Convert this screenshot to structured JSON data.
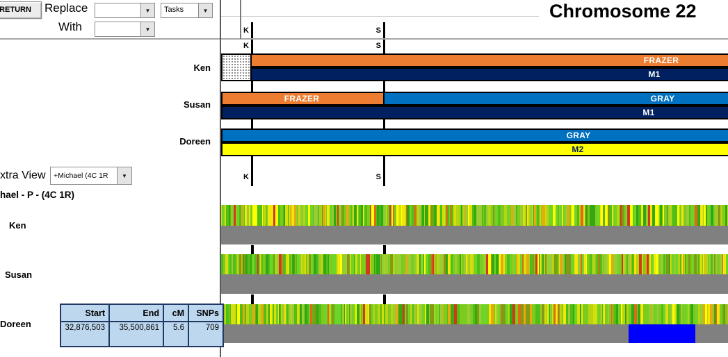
{
  "title": "Chromosome 22",
  "toolbar": {
    "return_button": "RETURN",
    "replace_label": "Replace",
    "with_label": "With",
    "replace_value": "",
    "with_value": "",
    "tasks_dropdown": "Tasks"
  },
  "icons": {
    "dropdown_arrow": "▼"
  },
  "ruler": {
    "left_marker": "K",
    "right_marker": "S"
  },
  "chromosome_map": {
    "ken": {
      "name": "Ken",
      "segment_1": "FRAZER",
      "segment_2": "M1"
    },
    "susan": {
      "name": "Susan",
      "segment_1": "FRAZER",
      "segment_2": "GRAY",
      "segment_3": "M1"
    },
    "doreen": {
      "name": "Doreen",
      "segment_1": "GRAY",
      "segment_2": "M2"
    }
  },
  "extra_view": {
    "label": "xtra View",
    "dropdown_value": "+Michael (4C 1R",
    "subtitle": "hael - P - (4C 1R)",
    "rows": [
      {
        "name": "Ken"
      },
      {
        "name": "Susan"
      },
      {
        "name": "Doreen"
      }
    ]
  },
  "segment_table": {
    "headers": [
      "Start",
      "End",
      "cM",
      "SNPs"
    ],
    "values": [
      "32,876,503",
      "35,500,861",
      "5.6",
      "709"
    ]
  },
  "colors": {
    "frazer_orange": "#ED7D31",
    "m1_navy": "#002060",
    "gray_blue": "#0070C0",
    "m2_yellow": "#FFFF00",
    "no_match_gray": "#808080",
    "match_blue": "#0000FF",
    "table_fill": "#BDD7EE"
  },
  "heatmap": {
    "palette": [
      "#9ACD32",
      "#7CCB1E",
      "#52BD15",
      "#33A812",
      "#6FD428",
      "#B8D411",
      "#D6DE0C",
      "#F2E70A",
      "#FFFF00",
      "#E8A80E",
      "#E06818",
      "#D03A1A",
      "#839B14"
    ],
    "weights": [
      13,
      12,
      12,
      8,
      11,
      9,
      8,
      7,
      5,
      4,
      3,
      3,
      5
    ],
    "seeds": [
      101,
      202,
      303
    ],
    "stripe_min": 1,
    "stripe_max": 4
  }
}
